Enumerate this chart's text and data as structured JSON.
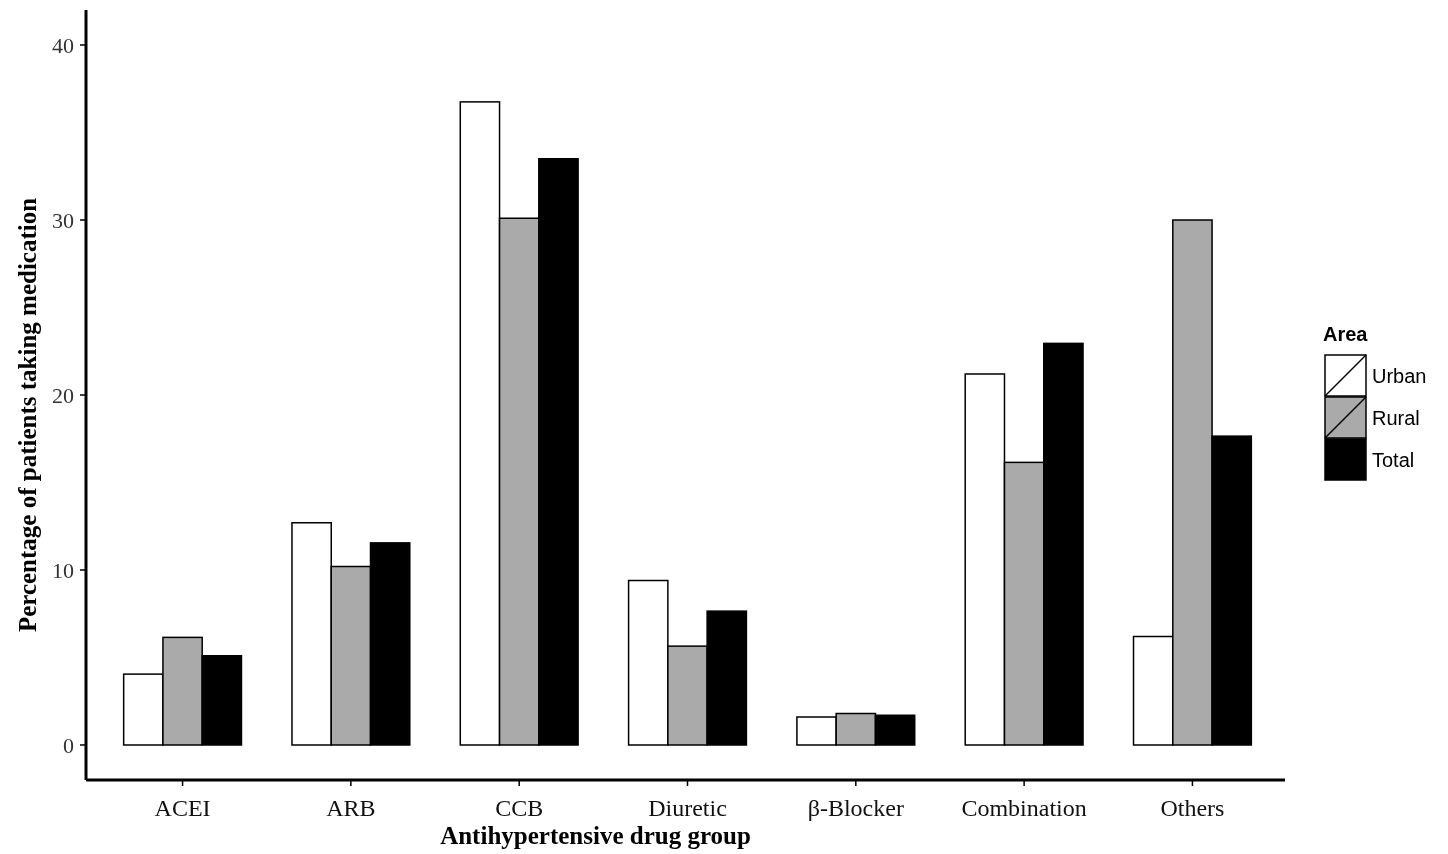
{
  "chart_data": {
    "type": "bar",
    "xlabel": "Antihypertensive drug group",
    "ylabel": "Percentage of patients taking medication",
    "legend_title": "Area",
    "legend": "right",
    "grid": false,
    "categories": [
      "ACEI",
      "ARB",
      "CCB",
      "Diuretic",
      "β-Blocker",
      "Combination",
      "Others"
    ],
    "ylim": [
      -2,
      42
    ],
    "yticks": [
      0,
      10,
      20,
      30,
      40
    ],
    "series": [
      {
        "name": "Urban",
        "color": "#ffffff",
        "values": [
          4.05,
          12.7,
          36.75,
          9.4,
          1.6,
          21.2,
          6.2
        ]
      },
      {
        "name": "Rural",
        "color": "#aaaaaa",
        "values": [
          6.15,
          10.2,
          30.1,
          5.65,
          1.8,
          16.15,
          30.0
        ]
      },
      {
        "name": "Total",
        "color": "#000000",
        "values": [
          5.1,
          11.55,
          33.5,
          7.65,
          1.7,
          22.95,
          17.65
        ]
      }
    ]
  }
}
